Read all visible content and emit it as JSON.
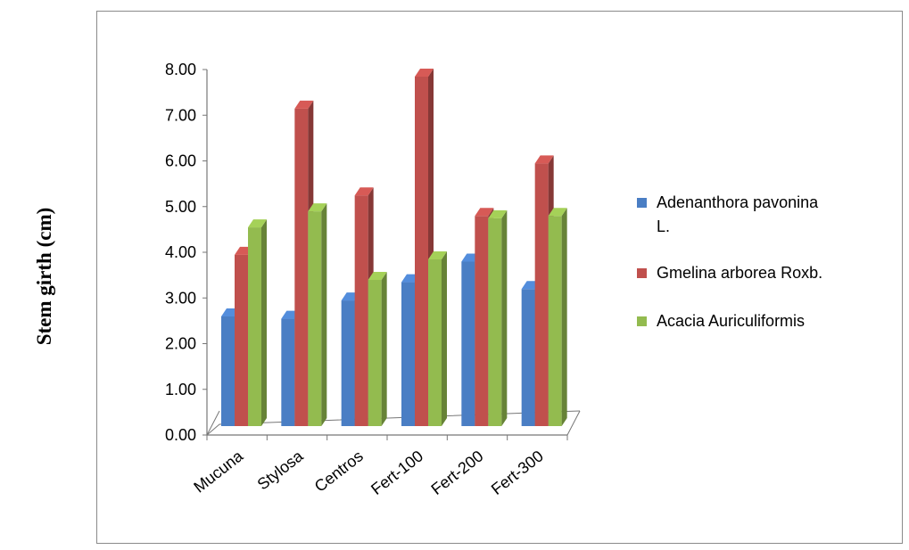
{
  "chart_data": {
    "type": "bar",
    "ylabel": "Stem girth (cm)",
    "ylim": [
      0,
      8
    ],
    "yticks": [
      "0.00",
      "1.00",
      "2.00",
      "3.00",
      "4.00",
      "5.00",
      "6.00",
      "7.00",
      "8.00"
    ],
    "categories": [
      "Mucuna",
      "Stylosa",
      "Centros",
      "Fert-100",
      "Fert-200",
      "Fert-300"
    ],
    "series": [
      {
        "name": "Adenanthora pavonina L.",
        "legend_lines": [
          "Adenanthora pavonina",
          "L."
        ],
        "color": "#4a7ec4",
        "values": [
          2.4,
          2.35,
          2.75,
          3.15,
          3.6,
          3.0
        ]
      },
      {
        "name": "Gmelina arborea  Roxb.",
        "legend_lines": [
          "Gmelina arborea  Roxb."
        ],
        "color": "#c0504d",
        "values": [
          3.75,
          6.95,
          5.05,
          7.65,
          4.6,
          5.75
        ]
      },
      {
        "name": "Acacia Auriculiformis",
        "legend_lines": [
          "Acacia Auriculiformis"
        ],
        "color": "#93bb4f",
        "values": [
          4.35,
          4.7,
          3.2,
          3.65,
          4.55,
          4.6
        ]
      }
    ],
    "legend_position": "right",
    "grid": false,
    "style": "3d-column"
  }
}
